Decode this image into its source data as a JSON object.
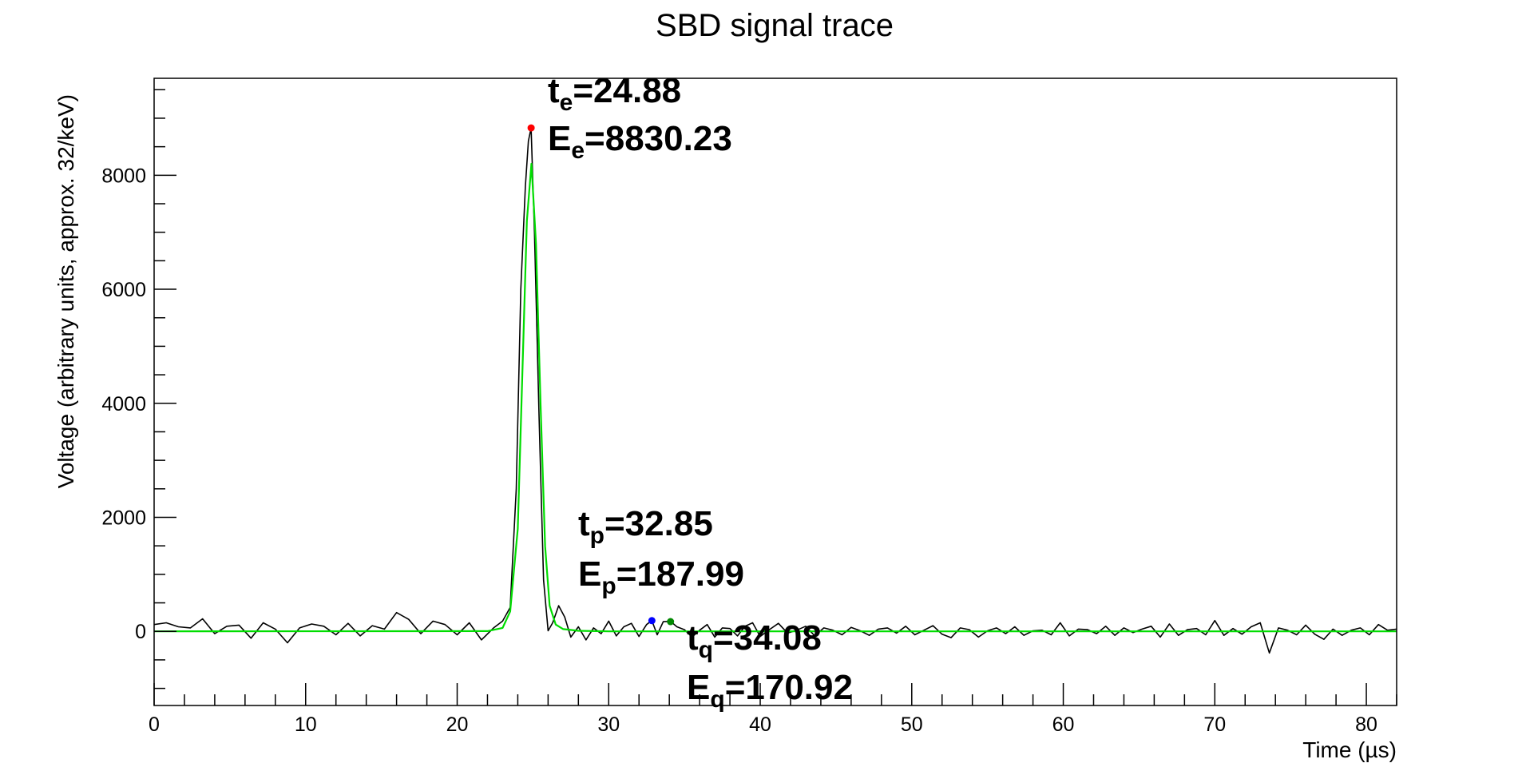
{
  "chart_data": {
    "type": "line",
    "title": "SBD signal trace",
    "xlabel": "Time (µs)",
    "ylabel": "Voltage (arbitrary units, approx. 32/keV)",
    "xlim": [
      0,
      82
    ],
    "ylim": [
      -1300,
      9700
    ],
    "xticks": [
      0,
      10,
      20,
      30,
      40,
      50,
      60,
      70,
      80
    ],
    "yticks": [
      0,
      2000,
      4000,
      6000,
      8000
    ],
    "grid": false,
    "series": [
      {
        "kind": "trace",
        "color": "#000000",
        "x": [
          0,
          0.8,
          1.6,
          2.4,
          3.2,
          4.0,
          4.8,
          5.6,
          6.4,
          7.2,
          8.0,
          8.8,
          9.6,
          10.4,
          11.2,
          12.0,
          12.8,
          13.6,
          14.4,
          15.2,
          16.0,
          16.8,
          17.6,
          18.4,
          19.2,
          20.0,
          20.8,
          21.6,
          22.4,
          23.0,
          23.5,
          23.9,
          24.2,
          24.5,
          24.7,
          24.88,
          25.1,
          25.4,
          25.7,
          26.0,
          26.3,
          26.7,
          27.1,
          27.5,
          28.0,
          28.5,
          29.0,
          29.5,
          30.0,
          30.5,
          31.0,
          31.5,
          32.0,
          32.5,
          32.85,
          33.2,
          33.6,
          34.08,
          34.5,
          35.0,
          35.5,
          36.0,
          36.5,
          37.0,
          37.5,
          38.0,
          38.5,
          39.0,
          39.5,
          40.0,
          40.6,
          41.2,
          41.8,
          42.4,
          43.0,
          43.6,
          44.2,
          44.8,
          45.4,
          46.0,
          46.6,
          47.2,
          47.8,
          48.4,
          49.0,
          49.6,
          50.2,
          50.8,
          51.4,
          52.0,
          52.6,
          53.2,
          53.8,
          54.4,
          55.0,
          55.6,
          56.2,
          56.8,
          57.4,
          58.0,
          58.6,
          59.2,
          59.8,
          60.4,
          61.0,
          61.6,
          62.2,
          62.8,
          63.4,
          64.0,
          64.6,
          65.2,
          65.8,
          66.4,
          67.0,
          67.6,
          68.2,
          68.8,
          69.4,
          70.0,
          70.6,
          71.2,
          71.8,
          72.4,
          73.0,
          73.6,
          74.2,
          74.8,
          75.4,
          76.0,
          76.6,
          77.2,
          77.8,
          78.4,
          79.0,
          79.6,
          80.2,
          80.8,
          81.4,
          82.0
        ],
        "y": [
          120,
          150,
          80,
          60,
          220,
          -40,
          90,
          110,
          -120,
          150,
          40,
          -200,
          60,
          130,
          90,
          -60,
          140,
          -80,
          100,
          40,
          330,
          210,
          -40,
          180,
          120,
          -60,
          150,
          -150,
          60,
          180,
          420,
          2500,
          6000,
          7800,
          8600,
          8830,
          7000,
          3800,
          900,
          10,
          150,
          450,
          250,
          -100,
          80,
          -150,
          60,
          -40,
          180,
          -80,
          80,
          140,
          -90,
          120,
          190,
          -60,
          170,
          175,
          80,
          30,
          -100,
          20,
          120,
          -100,
          60,
          50,
          -80,
          90,
          150,
          -90,
          30,
          140,
          -30,
          20,
          90,
          -80,
          60,
          20,
          -60,
          70,
          10,
          -70,
          40,
          60,
          -30,
          90,
          -60,
          20,
          100,
          -50,
          -110,
          60,
          30,
          -100,
          10,
          60,
          -40,
          80,
          -70,
          10,
          20,
          -60,
          150,
          -80,
          40,
          30,
          -40,
          90,
          -70,
          60,
          -20,
          40,
          90,
          -100,
          130,
          -70,
          30,
          50,
          -60,
          190,
          -70,
          50,
          -50,
          80,
          150,
          -380,
          60,
          20,
          -60,
          110,
          -50,
          -140,
          40,
          -70,
          20,
          60,
          -60,
          120,
          20,
          40
        ]
      },
      {
        "kind": "fit",
        "color": "#00dd00",
        "x": [
          0,
          22.0,
          23.0,
          23.5,
          24.0,
          24.3,
          24.6,
          24.9,
          25.2,
          25.5,
          25.8,
          26.1,
          26.5,
          27.0,
          28.0,
          30.0,
          40.0,
          60.0,
          82.0
        ],
        "y": [
          0,
          5,
          60,
          350,
          1800,
          4500,
          7200,
          8200,
          6800,
          4000,
          1500,
          450,
          120,
          40,
          10,
          0,
          0,
          0,
          0
        ]
      }
    ],
    "markers": [
      {
        "x": 24.88,
        "y": 8830.23,
        "color": "#ff0000"
      },
      {
        "x": 32.85,
        "y": 187.99,
        "color": "#0000ff"
      },
      {
        "x": 34.08,
        "y": 170.92,
        "color": "#008800"
      }
    ],
    "annotations": [
      {
        "id": "te",
        "t_sym": "t",
        "t_sub": "e",
        "t_val": "=24.88",
        "e_sym": "E",
        "e_sub": "e",
        "e_val": "=8830.23"
      },
      {
        "id": "tp",
        "t_sym": "t",
        "t_sub": "p",
        "t_val": "=32.85",
        "e_sym": "E",
        "e_sub": "p",
        "e_val": "=187.99"
      },
      {
        "id": "tq",
        "t_sym": "t",
        "t_sub": "q",
        "t_val": "=34.08",
        "e_sym": "E",
        "e_sub": "q",
        "e_val": "=170.92"
      }
    ]
  }
}
